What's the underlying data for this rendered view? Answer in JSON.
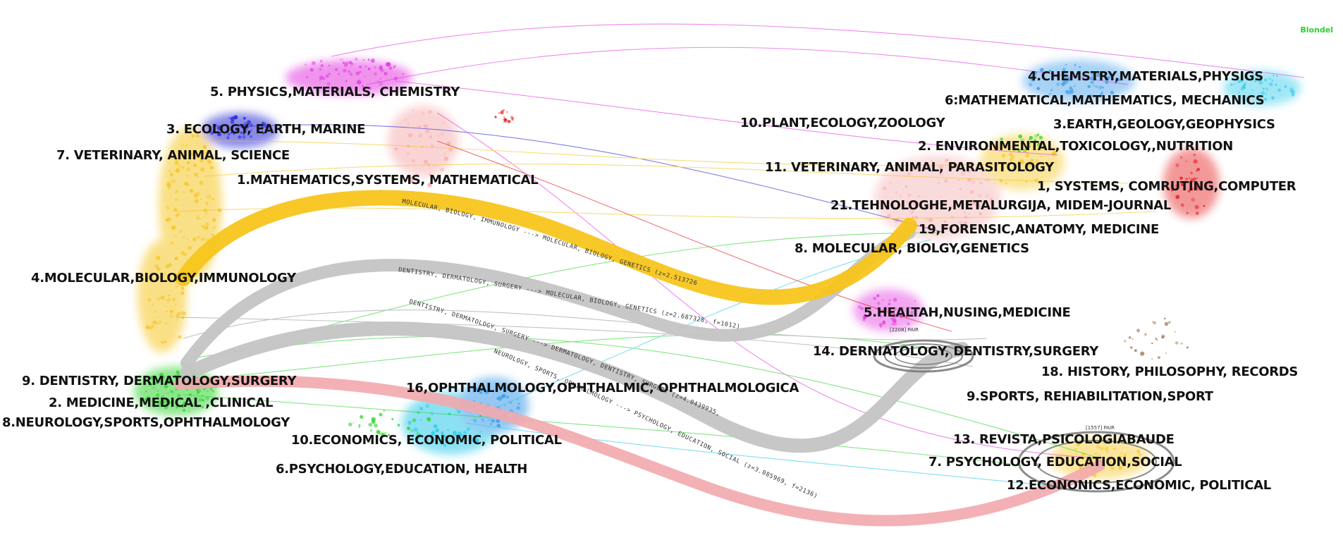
{
  "corner_label": "Blondel",
  "left_clusters": [
    "5. PHYSICS,MATERIALS, CHEMISTRY",
    "3. ECOLOGY, EARTH, MARINE",
    "7. VETERINARY, ANIMAL, SCIENCE",
    "1.MATHEMATICS,SYSTEMS, MATHEMATICAL",
    "4.MOLECULAR,BIOLOGY,IMMUNOLOGY",
    "9. DENTISTRY, DERMATOLOGY,SURGERY",
    "2. MEDICINE,MEDICAL ,CLINICAL",
    "8.NEUROLOGY,SPORTS,OPHTHALMOLOGY",
    "16,OPHTHALMOLOGY,OPHTHALMIC, OPHTHALMOLOGICA",
    "10.ECONOMICS, ECONOMIC, POLITICAL",
    "6.PSYCHOLOGY,EDUCATION, HEALTH"
  ],
  "right_clusters": [
    "4.CHEMSTRY,MATERIALS,PHYSIGS",
    "6:MATHEMATICAL,MATHEMATICS, MECHANICS",
    "10.PLANT,ECOLOGY,ZOOLOGY",
    "3.EARTH,GEOLOGY,GEOPHYSICS",
    "2. ENVIRONMENTAL,TOXICOLOGY,,NUTRITION",
    "11. VETERINARY, ANIMAL, PARASITOLOGY",
    "1, SYSTEMS, COMRUTING,COMPUTER",
    "21.TEHNOLOGHE,METALURGIJA, MIDEM-JOURNAL",
    "19,FORENSIC,ANATOMY, MEDICINE",
    "8. MOLECULAR, BIOLGY,GENETICS",
    "5.HEALTAH,NUSING,MEDICINE",
    "14. DERNIATOLOGY, DENTISTRY,SURGERY",
    "18. HISTORY, PHILOSOPHY, RECORDS",
    "9.SPORTS, REHIABILITATION,SPORT",
    "13. REVISTA,PSICOLOGIABAUDE",
    "7. PSYCHOLOGY, EDUCATION,SOCIAL",
    "12.ECONONICS,ECONOMIC, POLITICAL"
  ],
  "path_labels": [
    "MOLECULAR, BIOLOGY, IMMUNOLOGY ---> MOLECULAR, BIOLOGY, GENETICS (z=2.5137265, f=958)",
    "DENTISTRY, DERMATOLOGY, SURGERY ---> MOLECULAR, BIOLOGY, GENETICS (z=2.687328, f=1012)",
    "DENTISTRY, DERMATOLOGY, SURGERY ---> DERMATOLOGY, DENTISTRY, SURGERY (z=4.0439935, f=1434)",
    "NEUROLOGY, SPORTS, OPHTHALMOLOGY ---> PSYCHOLOGY, EDUCATION, SOCIAL (z=3.085969, f=2136)"
  ],
  "small_tags": [
    "[1557] PAIR",
    "[2208] PAIR"
  ],
  "colors": {
    "main_flow": "#f7c51c",
    "gray_flow": "#c4c4c4",
    "pink_flow": "#f2a8ad",
    "magenta": "#e33be0",
    "blue": "#2b2bd6",
    "red": "#e41b1b",
    "yellow": "#f5c623",
    "green": "#31d431",
    "cyan": "#2ec9e8",
    "light_blue": "#3d9cea",
    "salmon": "#f6b1b1",
    "brown": "#9a6a3a",
    "orange": "#ff9f2e"
  }
}
